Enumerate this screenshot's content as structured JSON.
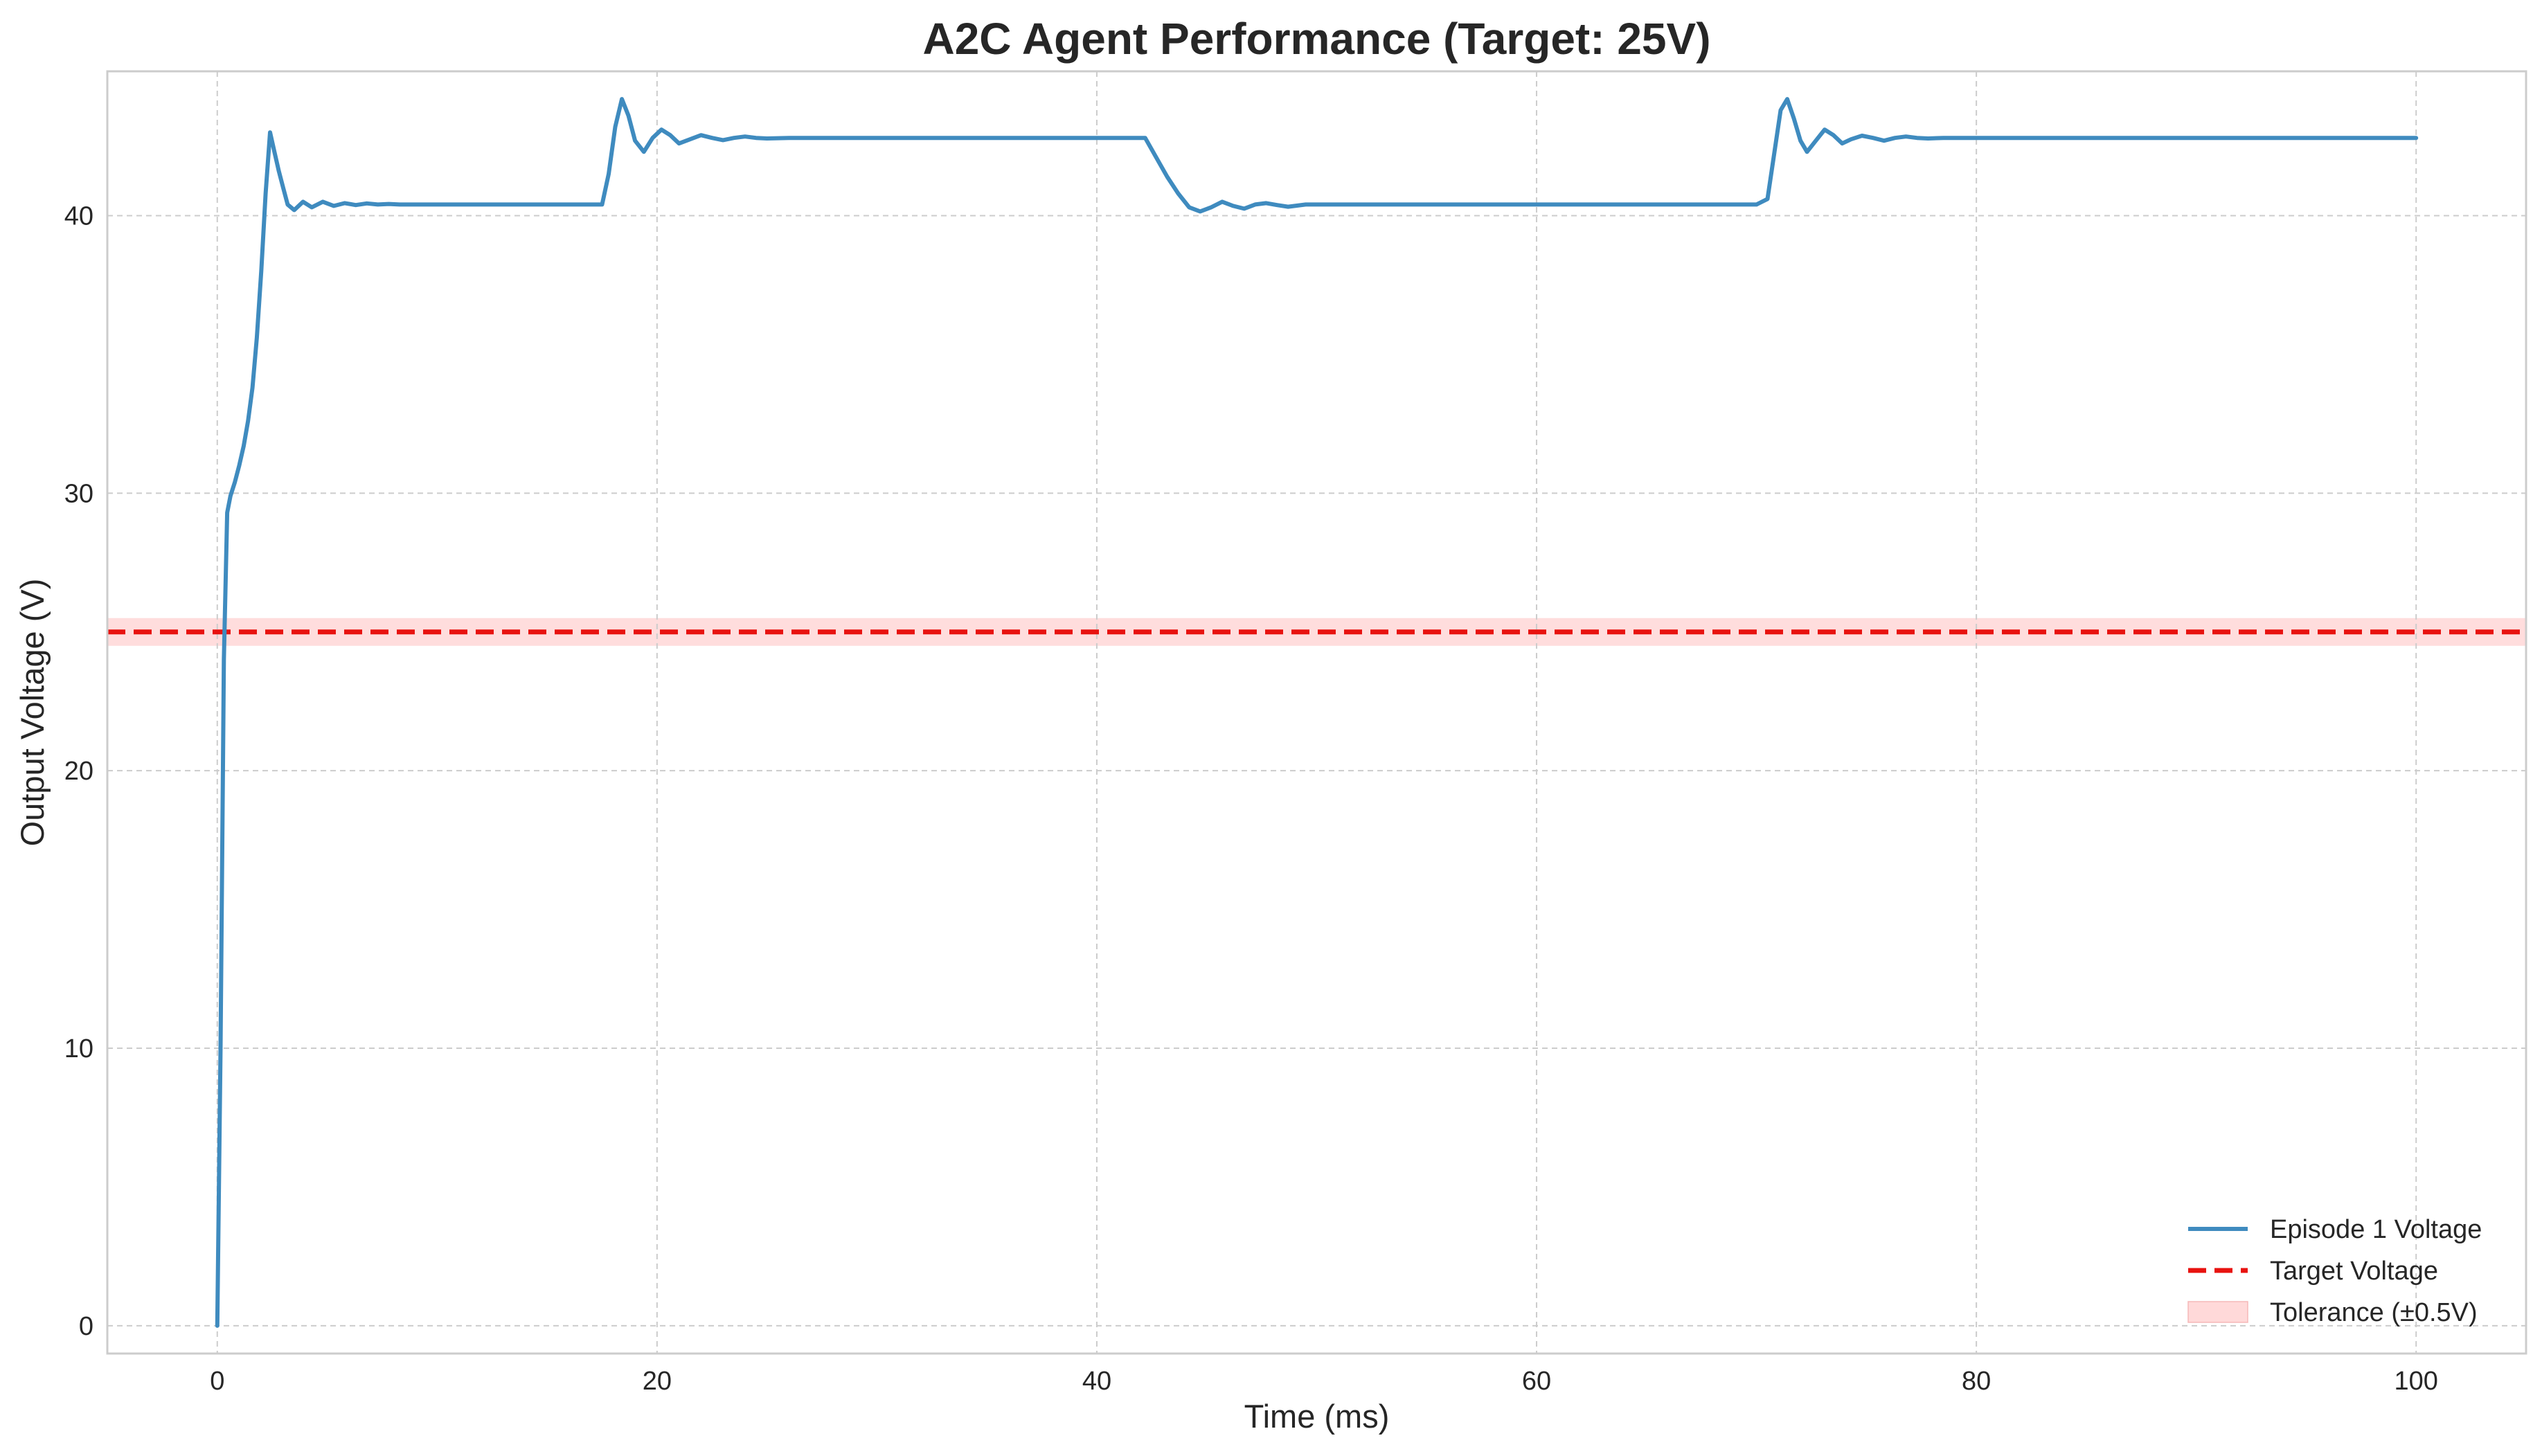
{
  "chart_data": {
    "type": "line",
    "title": "A2C Agent Performance (Target: 25V)",
    "xlabel": "Time (ms)",
    "ylabel": "Output Voltage (V)",
    "xlim": [
      -5,
      105
    ],
    "ylim": [
      -1,
      45.2
    ],
    "xticks": [
      0,
      20,
      40,
      60,
      80,
      100
    ],
    "yticks": [
      0,
      10,
      20,
      30,
      40
    ],
    "xtick_labels": [
      "0",
      "20",
      "40",
      "60",
      "80",
      "100"
    ],
    "ytick_labels": [
      "0",
      "10",
      "20",
      "30",
      "40"
    ],
    "grid": true,
    "legend_position": "lower-right",
    "target": 25,
    "tolerance": 0.5,
    "colors": {
      "series": "#3f8bbf",
      "target": "#e8120f",
      "tolerance_fill": "#ffd9d9",
      "grid": "#cccccc",
      "spine": "#cccccc"
    },
    "legend": [
      {
        "label": "Episode 1 Voltage",
        "kind": "line"
      },
      {
        "label": "Target Voltage",
        "kind": "dashed"
      },
      {
        "label": "Tolerance (±0.5V)",
        "kind": "patch"
      }
    ],
    "series": [
      {
        "name": "Episode 1 Voltage",
        "x": [
          0,
          0.15,
          0.3,
          0.45,
          0.6,
          0.8,
          1.0,
          1.2,
          1.4,
          1.6,
          1.8,
          2.0,
          2.2,
          2.4,
          2.6,
          2.8,
          3.0,
          3.2,
          3.5,
          3.9,
          4.3,
          4.8,
          5.3,
          5.8,
          6.3,
          6.8,
          7.3,
          7.8,
          8.3,
          8.8,
          9.5,
          10.2,
          11,
          12,
          13,
          14,
          15,
          16,
          17,
          17.5,
          17.8,
          18.1,
          18.4,
          18.7,
          19.0,
          19.4,
          19.8,
          20.2,
          20.6,
          21.0,
          21.5,
          22.0,
          22.5,
          23.0,
          23.5,
          24.0,
          24.5,
          25.0,
          26,
          27,
          28,
          30,
          35,
          40,
          42.2,
          42.7,
          43.2,
          43.7,
          44.2,
          44.7,
          45.2,
          45.7,
          46.2,
          46.7,
          47.2,
          47.7,
          48.2,
          48.7,
          49.5,
          50.5,
          52,
          55,
          60,
          65,
          70,
          70.5,
          70.8,
          71.1,
          71.4,
          71.7,
          72.0,
          72.3,
          72.7,
          73.1,
          73.5,
          73.9,
          74.3,
          74.8,
          75.3,
          75.8,
          76.3,
          76.8,
          77.3,
          77.8,
          78.5,
          79.5,
          80.5,
          82,
          85,
          90,
          95,
          100
        ],
        "y": [
          0,
          10,
          24,
          29.3,
          29.9,
          30.4,
          31,
          31.7,
          32.6,
          33.8,
          35.6,
          38,
          40.8,
          43.0,
          42.3,
          41.6,
          41.0,
          40.4,
          40.2,
          40.5,
          40.3,
          40.5,
          40.35,
          40.45,
          40.38,
          40.44,
          40.4,
          40.42,
          40.4,
          40.4,
          40.4,
          40.4,
          40.4,
          40.4,
          40.4,
          40.4,
          40.4,
          40.4,
          40.4,
          40.4,
          41.5,
          43.2,
          44.2,
          43.6,
          42.7,
          42.3,
          42.8,
          43.1,
          42.9,
          42.6,
          42.75,
          42.9,
          42.8,
          42.72,
          42.8,
          42.85,
          42.8,
          42.78,
          42.8,
          42.8,
          42.8,
          42.8,
          42.8,
          42.8,
          42.8,
          42.1,
          41.4,
          40.8,
          40.3,
          40.15,
          40.3,
          40.5,
          40.35,
          40.25,
          40.4,
          40.45,
          40.38,
          40.32,
          40.4,
          40.4,
          40.4,
          40.4,
          40.4,
          40.4,
          40.4,
          40.6,
          42.2,
          43.8,
          44.2,
          43.5,
          42.7,
          42.3,
          42.7,
          43.1,
          42.9,
          42.6,
          42.75,
          42.88,
          42.8,
          42.7,
          42.8,
          42.85,
          42.8,
          42.78,
          42.8,
          42.8,
          42.8,
          42.8,
          42.8,
          42.8,
          42.8,
          42.8
        ]
      }
    ]
  }
}
